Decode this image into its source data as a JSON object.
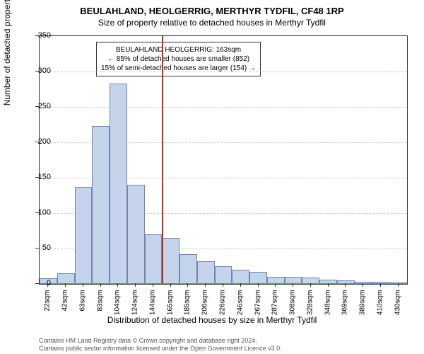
{
  "title": "BEULAHLAND, HEOLGERRIG, MERTHYR TYDFIL, CF48 1RP",
  "subtitle": "Size of property relative to detached houses in Merthyr Tydfil",
  "y_axis_label": "Number of detached properties",
  "x_axis_label": "Distribution of detached houses by size in Merthyr Tydfil",
  "chart": {
    "type": "histogram",
    "ylim": [
      0,
      350
    ],
    "ytick_step": 50,
    "yticks": [
      0,
      50,
      100,
      150,
      200,
      250,
      300,
      350
    ],
    "categories": [
      "22sqm",
      "42sqm",
      "63sqm",
      "83sqm",
      "104sqm",
      "124sqm",
      "144sqm",
      "165sqm",
      "185sqm",
      "206sqm",
      "226sqm",
      "246sqm",
      "267sqm",
      "287sqm",
      "308sqm",
      "328sqm",
      "348sqm",
      "369sqm",
      "389sqm",
      "410sqm",
      "430sqm"
    ],
    "values": [
      8,
      15,
      137,
      223,
      283,
      140,
      70,
      65,
      42,
      32,
      25,
      20,
      17,
      10,
      10,
      9,
      6,
      5,
      3,
      3,
      2
    ],
    "bar_color": "#c5d4ea",
    "bar_border_color": "#6a88b5",
    "grid_color": "#cccccc",
    "background_color": "#ffffff",
    "reference_line": {
      "position_index": 7,
      "color": "#d62222"
    }
  },
  "annotation": {
    "line1": "BEULAHLAND HEOLGERRIG: 163sqm",
    "line2": "← 85% of detached houses are smaller (852)",
    "line3": "15% of semi-detached houses are larger (154) →"
  },
  "footer": {
    "line1": "Contains HM Land Registry data © Crown copyright and database right 2024.",
    "line2": "Contains public sector information licensed under the Open Government Licence v3.0."
  }
}
